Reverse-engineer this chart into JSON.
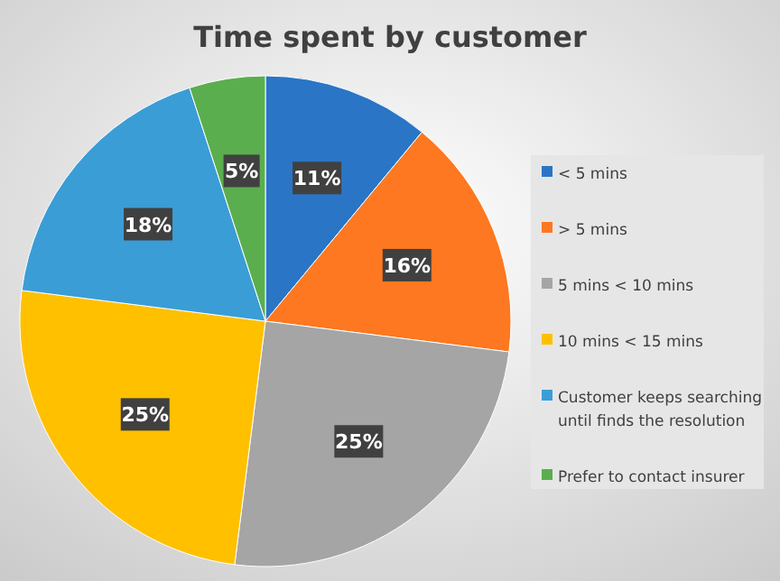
{
  "chart_data": {
    "type": "pie",
    "title": "Time spent by customer",
    "categories": [
      "< 5 mins",
      "> 5 mins",
      "5 mins < 10 mins",
      "10 mins < 15 mins",
      "Customer keeps searching until finds the resolution",
      "Prefer to contact insurer"
    ],
    "values": [
      11,
      16,
      25,
      25,
      18,
      5
    ],
    "value_labels": [
      "11%",
      "16%",
      "25%",
      "25%",
      "18%",
      "5%"
    ],
    "colors": [
      "#2a75c6",
      "#fd7820",
      "#a5a5a5",
      "#ffc000",
      "#3b9dd6",
      "#5aae4e"
    ],
    "legend": "right"
  }
}
